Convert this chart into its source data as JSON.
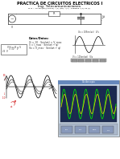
{
  "title1": "PRACTICA DE CIRCUITOS ELECTRICOS I",
  "title2": "Ing. Telecomunicaciones",
  "subtitle": "Si Vi = 10 Sen(wt) (Voltios)  I (T) (Ma)  I (T)  .Grafique I (T), Vo (T)",
  "bg_color": "#ffffff",
  "text_color": "#000000",
  "gray": "#555555",
  "darkgray": "#333333",
  "lightgray": "#bbbbbb",
  "osc_bg": "#c8d8e8",
  "osc_screen": "#1a2a50",
  "osc_wave1": "#00ee00",
  "osc_wave2": "#dddd00",
  "osc_grid": "#2a3a60",
  "small_wave_color": "#000000",
  "left_wave_color1": "#000000",
  "left_wave_color2": "#333333",
  "left_wave_color3": "#666666",
  "red_label": "#cc0000",
  "title_fontsize": 3.5,
  "subtitle_fontsize": 2.5,
  "eq_fontsize": 2.2,
  "label_fontsize": 2.0
}
